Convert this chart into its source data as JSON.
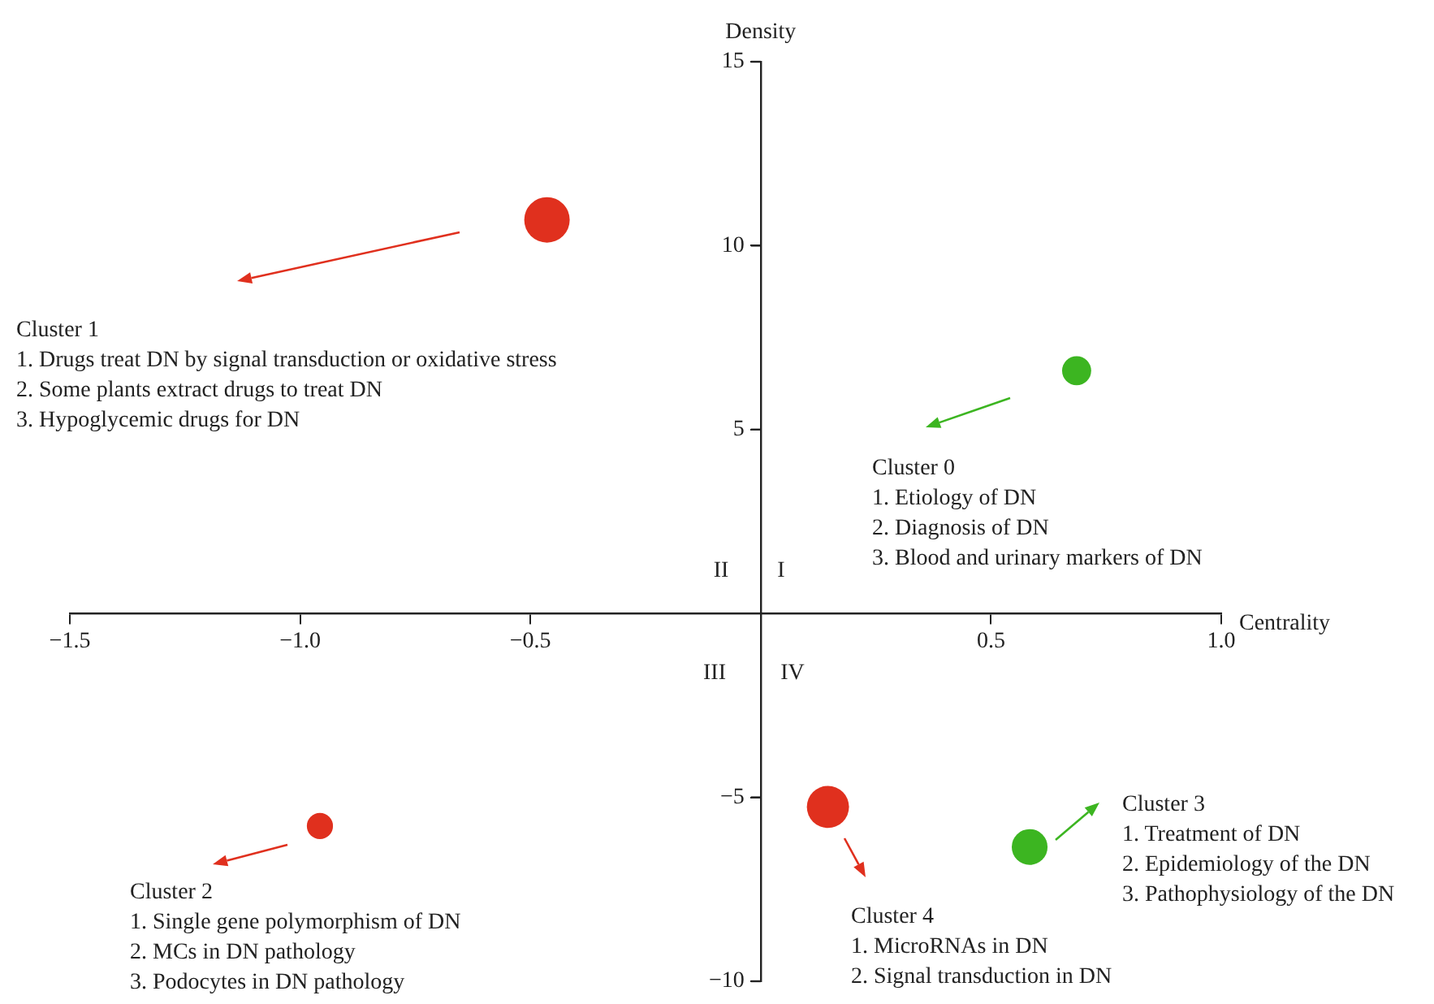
{
  "chart_data": {
    "type": "bubble",
    "xlabel": "Centrality",
    "ylabel": "Density",
    "x": [
      -0.464,
      0.686,
      -0.957,
      0.146,
      0.584
    ],
    "values": [
      10.7,
      6.6,
      -5.78,
      -5.26,
      -6.35
    ],
    "sizes": [
      1,
      0.41,
      0.33,
      0.86,
      0.62
    ],
    "colors": [
      "#e0301e",
      "#3cb521",
      "#e0301e",
      "#e0301e",
      "#3cb521"
    ],
    "xlim": [
      -1.5,
      1.0
    ],
    "xticks": [
      {
        "value": -1.5,
        "label": "−1.5"
      },
      {
        "value": -1.0,
        "label": "−1.0"
      },
      {
        "value": -0.5,
        "label": "−0.5"
      },
      {
        "value": 0.5,
        "label": "0.5"
      },
      {
        "value": 1.0,
        "label": "1.0"
      }
    ],
    "ylim": [
      -10,
      15
    ],
    "yticks": [
      {
        "value": -10,
        "label": "−10"
      },
      {
        "value": -5,
        "label": "−5"
      },
      5,
      10,
      15
    ],
    "grid": false,
    "legend": false,
    "annotations": [
      "Cluster 1\n1. Drugs treat DN by signal transduction or oxidative stress\n2. Some plants extract drugs to treat DN\n3. Hypoglycemic drugs for DN",
      "Cluster 0\n1. Etiology of DN\n2. Diagnosis of DN\n3. Blood and urinary markers of DN",
      "Cluster 2\n1. Single gene polymorphism of DN\n2. MCs in DN pathology\n3. Podocytes in DN pathology",
      "Cluster 4\n1. MicroRNAs in DN\n2. Signal transduction in DN",
      "Cluster 3\n1. Treatment of DN\n2. Epidemiology of the DN\n3. Pathophysiology of the DN",
      "II",
      "I",
      "III",
      "IV"
    ]
  }
}
